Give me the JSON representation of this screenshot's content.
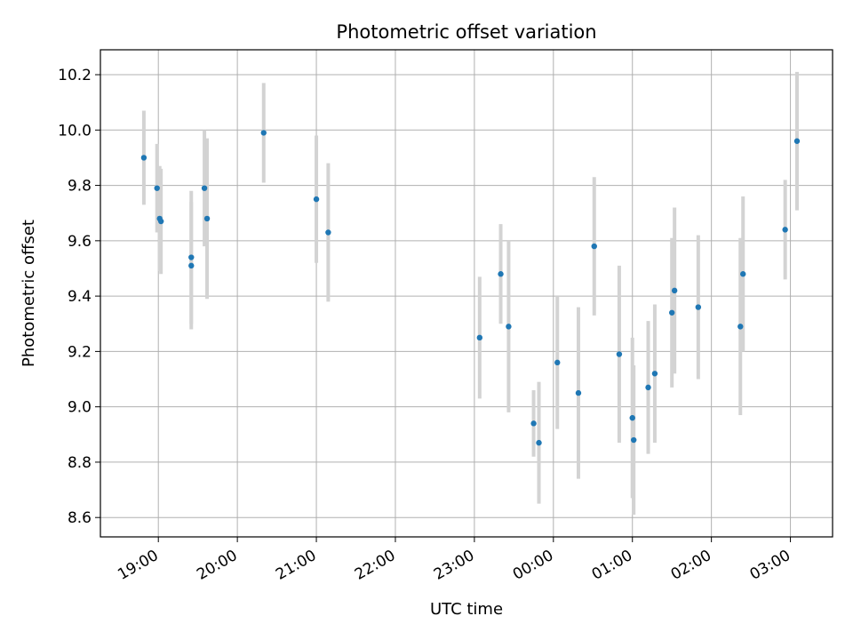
{
  "chart_data": {
    "type": "scatter",
    "title": "Photometric offset variation",
    "xlabel": "UTC time",
    "ylabel": "Photometric offset",
    "x_unit": "UTC time (HH:MM), wrapping past midnight",
    "x_ticks": [
      "19:00",
      "20:00",
      "21:00",
      "22:00",
      "23:00",
      "00:00",
      "01:00",
      "02:00",
      "03:00"
    ],
    "xlim": [
      "18:16",
      "03:32"
    ],
    "y_ticks": [
      "8.6",
      "8.8",
      "9.0",
      "9.2",
      "9.4",
      "9.6",
      "9.8",
      "10.0",
      "10.2"
    ],
    "ylim": [
      8.53,
      10.29
    ],
    "grid": true,
    "series": [
      {
        "marker_color": "#1f77b4",
        "errorbar_color": "#d3d3d3",
        "points": [
          {
            "x": "18:49",
            "y": 9.9,
            "err": 0.17
          },
          {
            "x": "18:59",
            "y": 9.79,
            "err": 0.16
          },
          {
            "x": "19:01",
            "y": 9.68,
            "err": 0.19
          },
          {
            "x": "19:02",
            "y": 9.67,
            "err": 0.19
          },
          {
            "x": "19:25",
            "y": 9.54,
            "err": 0.24
          },
          {
            "x": "19:25",
            "y": 9.51,
            "err": 0.23
          },
          {
            "x": "19:35",
            "y": 9.79,
            "err": 0.21
          },
          {
            "x": "19:37",
            "y": 9.68,
            "err": 0.29
          },
          {
            "x": "20:20",
            "y": 9.99,
            "err": 0.18
          },
          {
            "x": "21:00",
            "y": 9.75,
            "err": 0.23
          },
          {
            "x": "21:09",
            "y": 9.63,
            "err": 0.25
          },
          {
            "x": "23:04",
            "y": 9.25,
            "err": 0.22
          },
          {
            "x": "23:20",
            "y": 9.48,
            "err": 0.18
          },
          {
            "x": "23:26",
            "y": 9.29,
            "err": 0.31
          },
          {
            "x": "23:45",
            "y": 8.94,
            "err": 0.12
          },
          {
            "x": "23:49",
            "y": 8.87,
            "err": 0.22
          },
          {
            "x": "00:03",
            "y": 9.16,
            "err": 0.24
          },
          {
            "x": "00:19",
            "y": 9.05,
            "err": 0.31
          },
          {
            "x": "00:31",
            "y": 9.58,
            "err": 0.25
          },
          {
            "x": "00:50",
            "y": 9.19,
            "err": 0.32
          },
          {
            "x": "01:00",
            "y": 8.96,
            "err": 0.29
          },
          {
            "x": "01:01",
            "y": 8.88,
            "err": 0.27
          },
          {
            "x": "01:12",
            "y": 9.07,
            "err": 0.24
          },
          {
            "x": "01:17",
            "y": 9.12,
            "err": 0.25
          },
          {
            "x": "01:30",
            "y": 9.34,
            "err": 0.27
          },
          {
            "x": "01:32",
            "y": 9.42,
            "err": 0.3
          },
          {
            "x": "01:50",
            "y": 9.36,
            "err": 0.26
          },
          {
            "x": "02:22",
            "y": 9.29,
            "err": 0.32
          },
          {
            "x": "02:24",
            "y": 9.48,
            "err": 0.28
          },
          {
            "x": "02:56",
            "y": 9.64,
            "err": 0.18
          },
          {
            "x": "03:05",
            "y": 9.96,
            "err": 0.25
          }
        ]
      }
    ]
  }
}
